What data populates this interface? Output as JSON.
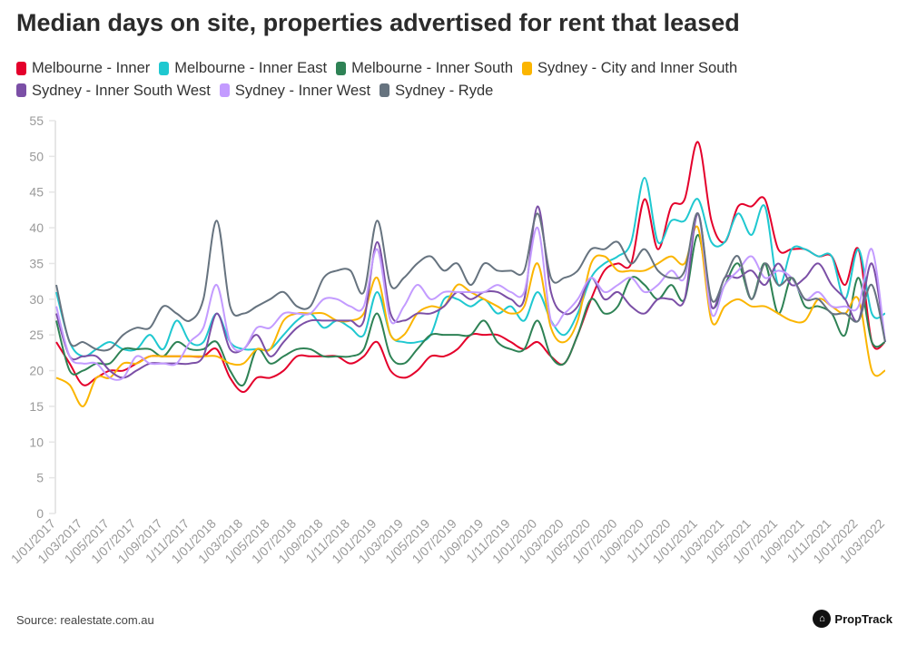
{
  "chart_data": {
    "type": "line",
    "title": "Median days on site, properties advertised for rent that leased",
    "source": "Source: realestate.com.au",
    "brand": "PropTrack",
    "ylim": [
      0,
      55
    ],
    "yticks": [
      0,
      5,
      10,
      15,
      20,
      25,
      30,
      35,
      40,
      45,
      50,
      55
    ],
    "xtick_labels": [
      "1/01/2017",
      "1/03/2017",
      "1/05/2017",
      "1/07/2017",
      "1/09/2017",
      "1/11/2017",
      "1/01/2018",
      "1/03/2018",
      "1/05/2018",
      "1/07/2018",
      "1/09/2018",
      "1/11/2018",
      "1/01/2019",
      "1/03/2019",
      "1/05/2019",
      "1/07/2019",
      "1/09/2019",
      "1/11/2019",
      "1/01/2020",
      "1/03/2020",
      "1/05/2020",
      "1/07/2020",
      "1/09/2020",
      "1/11/2020",
      "1/01/2021",
      "1/03/2021",
      "1/05/2021",
      "1/07/2021",
      "1/09/2021",
      "1/11/2021",
      "1/01/2022",
      "1/03/2022"
    ],
    "x_start": "1/01/2017",
    "x_end": "1/03/2022",
    "x_frequency": "monthly",
    "grid": false,
    "legend_position": "top",
    "series": [
      {
        "name": "Melbourne - Inner",
        "color": "#e4002b",
        "values": [
          24,
          21,
          18,
          19,
          20,
          20,
          21,
          22,
          22,
          22,
          22,
          22,
          23,
          19,
          17,
          19,
          19,
          20,
          22,
          22,
          22,
          22,
          21,
          22,
          24,
          20,
          19,
          20,
          22,
          22,
          23,
          25,
          25,
          25,
          24,
          23,
          24,
          22,
          21,
          25,
          30,
          34,
          35,
          35,
          44,
          37,
          43,
          44,
          52,
          41,
          38,
          43,
          43,
          44,
          37,
          37,
          37,
          36,
          36,
          32,
          37,
          24,
          24
        ]
      },
      {
        "name": "Melbourne - Inner East",
        "color": "#1fc8d0",
        "values": [
          31,
          24,
          22,
          23,
          24,
          23,
          23,
          25,
          23,
          27,
          24,
          24,
          28,
          24,
          23,
          23,
          23,
          25,
          27,
          28,
          26,
          27,
          26,
          25,
          31,
          25,
          24,
          24,
          25,
          30,
          30,
          29,
          30,
          28,
          29,
          27,
          31,
          27,
          25,
          28,
          33,
          35,
          36,
          38,
          47,
          38,
          41,
          41,
          44,
          38,
          38,
          42,
          39,
          43,
          32,
          37,
          37,
          36,
          36,
          30,
          37,
          28,
          28
        ]
      },
      {
        "name": "Melbourne - Inner South",
        "color": "#2e8255",
        "values": [
          27,
          20,
          20,
          21,
          21,
          23,
          23,
          23,
          22,
          24,
          23,
          23,
          24,
          20,
          18,
          23,
          21,
          22,
          23,
          23,
          22,
          22,
          22,
          23,
          28,
          22,
          21,
          23,
          25,
          25,
          25,
          25,
          27,
          24,
          23,
          23,
          27,
          22,
          21,
          25,
          30,
          28,
          29,
          33,
          32,
          30,
          32,
          30,
          39,
          29,
          32,
          35,
          30,
          35,
          28,
          33,
          29,
          29,
          28,
          25,
          33,
          24,
          24
        ]
      },
      {
        "name": "Sydney - City and Inner South",
        "color": "#fbb500",
        "values": [
          19,
          18,
          15,
          19,
          19,
          21,
          21,
          22,
          22,
          22,
          22,
          22,
          22,
          21,
          21,
          23,
          23,
          27,
          28,
          28,
          28,
          27,
          27,
          28,
          33,
          25,
          25,
          28,
          29,
          29,
          32,
          31,
          30,
          29,
          28,
          29,
          35,
          26,
          24,
          27,
          35,
          36,
          34,
          34,
          34,
          35,
          36,
          35,
          40,
          27,
          29,
          30,
          29,
          29,
          28,
          27,
          27,
          30,
          29,
          28,
          30,
          20,
          20
        ]
      },
      {
        "name": "Sydney - Inner South West",
        "color": "#7b4fa6",
        "values": [
          28,
          22,
          22,
          22,
          20,
          19,
          20,
          21,
          21,
          21,
          21,
          22,
          28,
          23,
          23,
          25,
          22,
          24,
          26,
          27,
          27,
          27,
          27,
          27,
          38,
          28,
          27,
          28,
          28,
          29,
          31,
          30,
          31,
          31,
          30,
          30,
          43,
          31,
          28,
          29,
          33,
          30,
          31,
          29,
          28,
          30,
          30,
          30,
          42,
          29,
          33,
          33,
          34,
          32,
          35,
          32,
          33,
          35,
          32,
          30,
          27,
          35,
          24
        ]
      },
      {
        "name": "Sydney - Inner West",
        "color": "#c39bff",
        "values": [
          29,
          22,
          21,
          21,
          19,
          19,
          22,
          21,
          21,
          21,
          24,
          26,
          32,
          24,
          23,
          26,
          26,
          28,
          28,
          28,
          30,
          30,
          29,
          29,
          37,
          27,
          29,
          32,
          30,
          31,
          31,
          31,
          31,
          32,
          31,
          31,
          40,
          27,
          28,
          30,
          33,
          31,
          32,
          33,
          31,
          32,
          34,
          33,
          42,
          28,
          32,
          34,
          36,
          33,
          34,
          33,
          30,
          31,
          29,
          29,
          29,
          37,
          24
        ]
      },
      {
        "name": "Sydney - Ryde",
        "color": "#66737f",
        "values": [
          32,
          24,
          24,
          23,
          23,
          25,
          26,
          26,
          29,
          28,
          27,
          30,
          41,
          29,
          28,
          29,
          30,
          31,
          29,
          29,
          33,
          34,
          34,
          31,
          41,
          32,
          33,
          35,
          36,
          34,
          35,
          32,
          35,
          34,
          34,
          34,
          42,
          33,
          33,
          34,
          37,
          37,
          38,
          35,
          37,
          34,
          33,
          34,
          42,
          30,
          33,
          36,
          30,
          35,
          32,
          33,
          30,
          30,
          28,
          28,
          27,
          32,
          24
        ]
      }
    ]
  }
}
